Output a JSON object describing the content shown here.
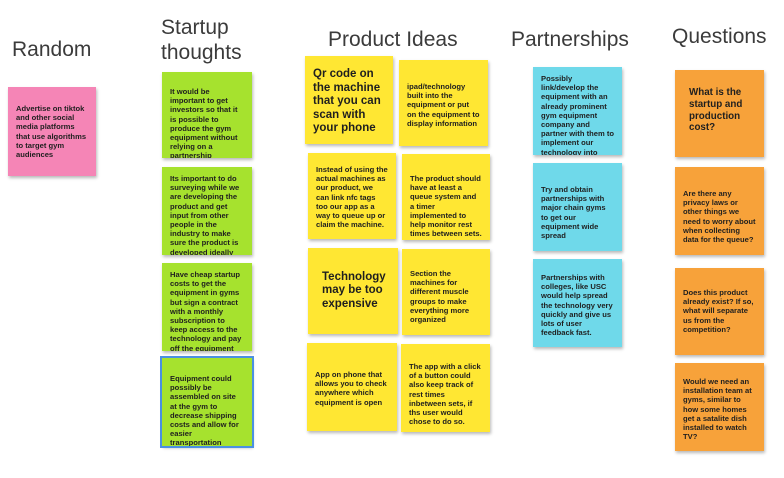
{
  "columns": {
    "random": "Random",
    "startup_line1": "Startup",
    "startup_line2": "thoughts",
    "product": "Product Ideas",
    "partnerships": "Partnerships",
    "questions": "Questions"
  },
  "random_notes": [
    "Advertise on tiktok and other social media platforms that use algorithms to target gym audiences"
  ],
  "startup_notes": [
    "It would be important to get investors so that it is possible to produce the gym equipment without relying on a partnership",
    "Its important to do surveying while we are developing the product and get input from other people in the industry to make sure the product is developed ideally",
    "Have cheap startup costs to get the equipment in gyms but sign a contract with a monthly subscription to keep access to the technology and pay off the equipment",
    "Equipment could possibly be assembled on site at the gym to decrease shipping costs and allow for easier transportation"
  ],
  "product_notes": [
    "Qr code on the machine that you can scan with your phone",
    "ipad/technology built into the equipment or put on the equipment to display information",
    "Instead of using the actual machines as our product, we can link nfc tags too our app as a way to queue up or claim the machine.",
    "The product should have at least a queue system and a timer implemented to help monitor rest times between sets.",
    "Technology may be too expensive",
    "Section the machines for different muscle groups to make everything more organized",
    "App on phone that allows you to check anywhere which equipment is open",
    "The app with a click of a button could also keep track of rest times inbetween sets, if ths user would chose to do so."
  ],
  "partnership_notes": [
    "Possibly link/develop the equipment with an already prominent gym equipment company and partner with them to implement our technology into their equipment",
    "Try and obtain partnerships with major chain gyms to get our equipment wide spread",
    "Partnerships with colleges, like USC would help spread the technology very quickly and give us lots of user feedback fast."
  ],
  "question_notes": [
    "What is the startup and production cost?",
    "Are there any privacy laws or other things we need to worry about when collecting data for the queue?",
    "Does this product already exist? If so, what will separate us from the competition?",
    "Would we need an installation team at gyms, similar to how some homes get a satalite dish installed to watch TV?"
  ],
  "colors": {
    "pink": "#f585b6",
    "green": "#a6e22e",
    "yellow": "#ffe733",
    "cyan": "#6fd9ea",
    "orange": "#f7a23a",
    "selection": "#4a90e2"
  }
}
